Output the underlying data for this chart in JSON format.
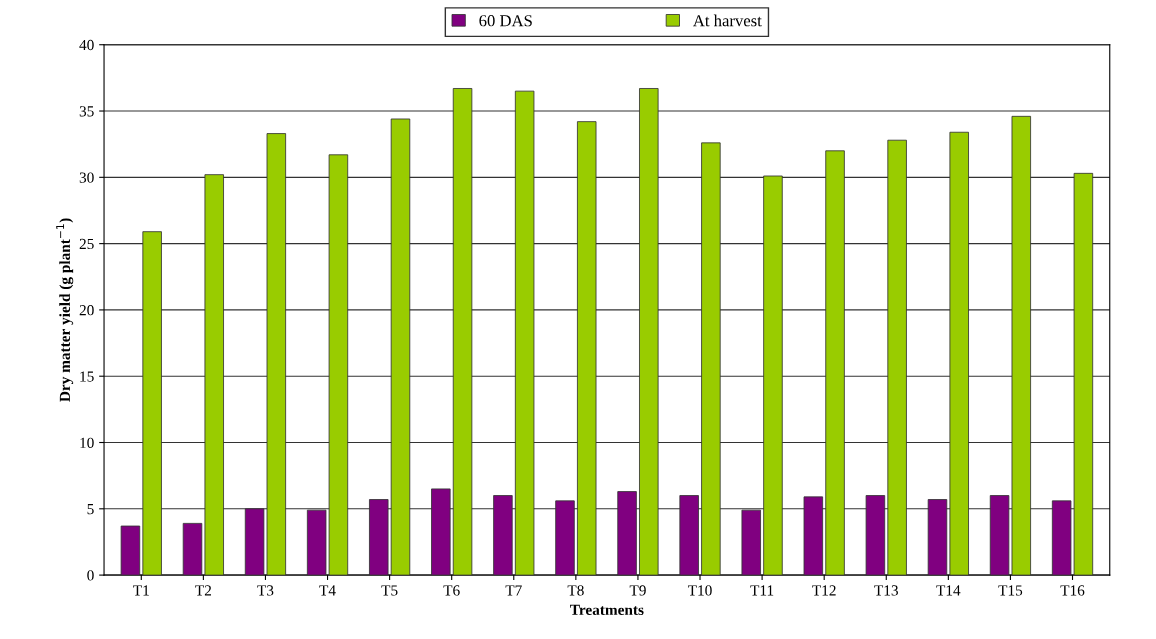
{
  "chart_data": {
    "type": "bar",
    "xlabel": "Treatments",
    "ylabel": "Dry matter yield (g plant$^{−1}$)",
    "categories": [
      "T1",
      "T2",
      "T3",
      "T4",
      "T5",
      "T6",
      "T7",
      "T8",
      "T9",
      "T10",
      "T11",
      "T12",
      "T13",
      "T14",
      "T15",
      "T16"
    ],
    "series": [
      {
        "name": "60 DAS",
        "color": "#800080",
        "values": [
          3.7,
          3.9,
          5.0,
          4.9,
          5.7,
          6.5,
          6.0,
          5.6,
          6.3,
          6.0,
          4.9,
          5.9,
          6.0,
          5.7,
          6.0,
          5.6
        ]
      },
      {
        "name": "At harvest",
        "color": "#99cc00",
        "values": [
          25.9,
          30.2,
          33.3,
          31.7,
          34.4,
          36.7,
          36.5,
          34.2,
          36.7,
          32.6,
          30.1,
          32.0,
          32.8,
          33.4,
          34.6,
          30.3
        ]
      }
    ],
    "ylim": [
      0,
      40
    ],
    "yticks": [
      0,
      5,
      10,
      15,
      20,
      25,
      30,
      35,
      40
    ],
    "grid": "y",
    "legend": "top"
  }
}
